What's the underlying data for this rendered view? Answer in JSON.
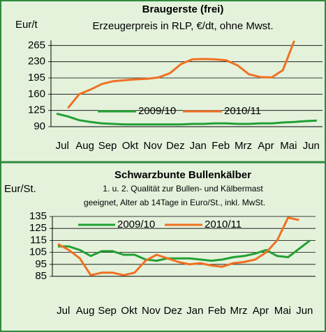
{
  "chart_data": [
    {
      "type": "line",
      "title": "Braugerste (frei)",
      "subtitle": "Erzeugerpreis in RLP, €/dt, ohne Mwst.",
      "y_label": "Eur/t",
      "categories": [
        "Jul",
        null,
        "Aug",
        null,
        "Sep",
        null,
        "Okt",
        null,
        "Nov",
        null,
        "Dez",
        null,
        "Jan",
        null,
        "Feb",
        null,
        "Mrz",
        null,
        "Apr",
        null,
        "Mai",
        null,
        "Jun",
        null
      ],
      "series": [
        {
          "name": "2009/10",
          "color": "#22a033",
          "values": [
            118,
            112,
            104,
            100,
            97,
            96,
            95,
            95,
            95,
            95,
            95,
            95,
            96,
            96,
            97,
            97,
            96,
            96,
            97,
            97,
            99,
            100,
            102,
            103
          ]
        },
        {
          "name": "2010/11",
          "color": "#f07021",
          "values": [
            null,
            130,
            160,
            170,
            182,
            188,
            190,
            192,
            193,
            196,
            205,
            225,
            235,
            236,
            235,
            233,
            222,
            203,
            197,
            196,
            212,
            275,
            null,
            null
          ]
        }
      ],
      "ylim": [
        90,
        276
      ],
      "yticks": [
        90,
        125,
        160,
        195,
        230,
        265
      ],
      "grid": true
    },
    {
      "type": "line",
      "title": "Schwarzbunte Bullenkälber",
      "subtitle": [
        "1. u. 2. Qualität zur Bullen- und Kälbermast",
        "geeignet, Alter ab 14Tage in Euro/St., inkl. MwSt."
      ],
      "y_label": "Eur/St.",
      "categories": [
        "Jul",
        null,
        "Aug",
        null,
        "Sep",
        null,
        "Okt",
        null,
        "Nov",
        null,
        "Dez",
        null,
        "Jan",
        null,
        "Feb",
        null,
        "Mrz",
        null,
        "Apr",
        null,
        "Mai",
        null,
        "Jun",
        null
      ],
      "series": [
        {
          "name": "2009/10",
          "color": "#22a033",
          "values": [
            110,
            110,
            107,
            102,
            106,
            106,
            103,
            103,
            99,
            98,
            100,
            100,
            100,
            99,
            98,
            99,
            101,
            102,
            104,
            107,
            102,
            101,
            108,
            115
          ]
        },
        {
          "name": "2010/11",
          "color": "#f07021",
          "values": [
            112,
            107,
            100,
            86,
            88,
            88,
            86,
            88,
            98,
            103,
            100,
            97,
            95,
            96,
            94,
            93,
            96,
            97,
            99,
            105,
            115,
            134,
            132,
            null
          ]
        }
      ],
      "ylim": [
        85,
        135
      ],
      "yticks": [
        85,
        95,
        105,
        115,
        125,
        135
      ],
      "grid": true
    }
  ]
}
